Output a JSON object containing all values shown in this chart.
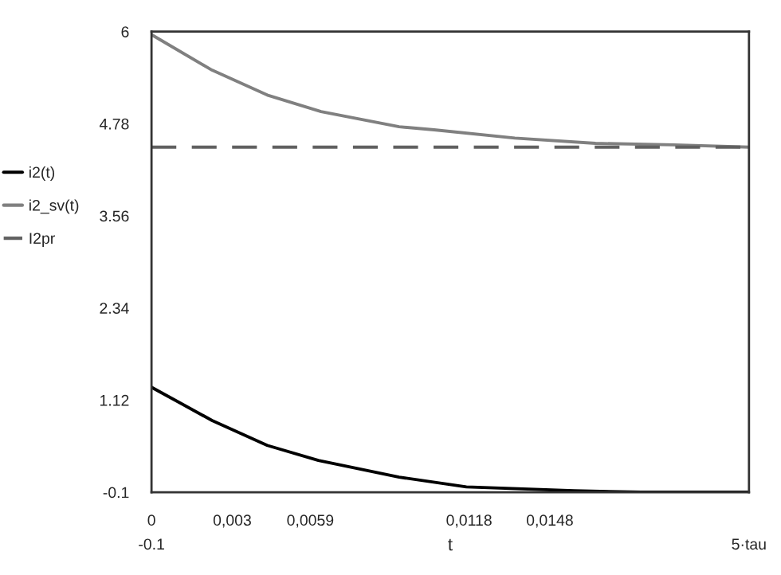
{
  "chart_data": {
    "type": "line",
    "xlabel": "t",
    "x": [
      0,
      0.00225,
      0.0043,
      0.0063,
      0.0092,
      0.0105,
      0.0135,
      0.0165,
      0.0194,
      0.0222
    ],
    "series": [
      {
        "name": "i2(t)",
        "color": "#000000",
        "x": [
          0,
          0.00225,
          0.0043,
          0.0062,
          0.0092,
          0.0117,
          0.0157,
          0.0182,
          0.0222
        ],
        "values": [
          1.29,
          0.85,
          0.52,
          0.32,
          0.1,
          -0.03,
          -0.08,
          -0.1,
          -0.1
        ]
      },
      {
        "name": "i2_sv(t)",
        "color": "#808080",
        "values": [
          5.96,
          5.49,
          5.16,
          4.94,
          4.74,
          4.7,
          4.59,
          4.52,
          4.5,
          4.47
        ]
      },
      {
        "name": "I2pr",
        "color": "#606060",
        "line_style": "dashed",
        "x": [
          0,
          0.0222
        ],
        "values": [
          4.47,
          4.47
        ]
      }
    ],
    "xlim": [
      0,
      0.0222
    ],
    "ylim": [
      -0.1,
      6
    ],
    "xticks": [
      0,
      {
        "value": 0.003,
        "label": "0,003"
      },
      {
        "value": 0.0059,
        "label": "0,0059"
      },
      {
        "value": 0.0118,
        "label": "0,0118"
      },
      {
        "value": 0.0148,
        "label": "0,0148"
      }
    ],
    "yticks": [
      -0.1,
      1.12,
      2.34,
      3.56,
      4.78,
      6
    ],
    "annotations": [
      "-0.1",
      "5·tau"
    ],
    "grid": false,
    "legend": "left",
    "line_style": "solid",
    "marker": "none"
  }
}
